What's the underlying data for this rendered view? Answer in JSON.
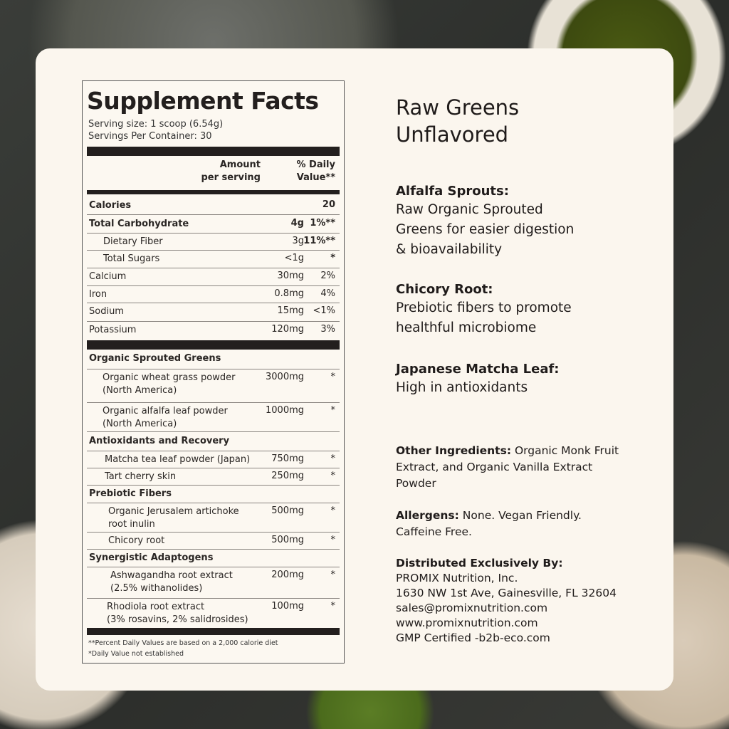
{
  "facts": {
    "title": "Supplement Facts",
    "serving_size": "Serving size: 1 scoop (6.54g)",
    "servings_per_container": "Servings Per Container: 30",
    "col_amount": [
      "Amount",
      "per serving"
    ],
    "col_dv": [
      "% Daily",
      "Value**"
    ],
    "calories": {
      "name": "Calories",
      "value": "20"
    },
    "nutrients": [
      {
        "name": "Total Carbohydrate",
        "amount": "4g",
        "dv": "1%**"
      },
      {
        "name": "Dietary Fiber",
        "amount": "3g",
        "dv": "11%**"
      },
      {
        "name": "Total Sugars",
        "amount": "<1g",
        "dv": "*"
      },
      {
        "name": "Calcium",
        "amount": "30mg",
        "dv": "2%"
      },
      {
        "name": "Iron",
        "amount": "0.8mg",
        "dv": "4%"
      },
      {
        "name": "Sodium",
        "amount": "15mg",
        "dv": "<1%"
      },
      {
        "name": "Potassium",
        "amount": "120mg",
        "dv": "3%"
      }
    ],
    "groups": [
      {
        "name": "Organic Sprouted Greens",
        "items": [
          {
            "name": "Organic wheat grass powder",
            "sub": "(North America)",
            "amount": "3000mg",
            "dv": "*"
          },
          {
            "name": "Organic alfalfa leaf powder",
            "sub": "(North America)",
            "amount": "1000mg",
            "dv": "*"
          }
        ]
      },
      {
        "name": "Antioxidants and Recovery",
        "items": [
          {
            "name": "Matcha tea leaf powder (Japan)",
            "amount": "750mg",
            "dv": "*"
          },
          {
            "name": "Tart cherry skin",
            "amount": "250mg",
            "dv": "*"
          }
        ]
      },
      {
        "name": "Prebiotic Fibers",
        "items": [
          {
            "name": "Organic Jerusalem artichoke",
            "sub": "root inulin",
            "amount": "500mg",
            "dv": "*"
          },
          {
            "name": "Chicory root",
            "amount": "500mg",
            "dv": "*"
          }
        ]
      },
      {
        "name": "Synergistic Adaptogens",
        "items": [
          {
            "name": "Ashwagandha root extract",
            "sub": "(2.5% withanolides)",
            "amount": "200mg",
            "dv": "*"
          },
          {
            "name": "Rhodiola root extract",
            "sub": "(3% rosavins, 2% salidrosides)",
            "amount": "100mg",
            "dv": "*"
          }
        ]
      }
    ],
    "footnotes": [
      "**Percent Daily Values are based on a 2,000 calorie diet",
      "*Daily Value not established"
    ]
  },
  "product": {
    "title_lines": [
      "Raw Greens",
      "Unflavored"
    ]
  },
  "highlights": [
    {
      "heading": "Alfalfa Sprouts:",
      "lines": [
        "Raw Organic Sprouted",
        "Greens for easier digestion",
        "& bioavailability"
      ]
    },
    {
      "heading": "Chicory Root:",
      "lines": [
        "Prebiotic fibers to promote",
        "healthful microbiome"
      ]
    },
    {
      "heading": "Japanese Matcha Leaf:",
      "lines": [
        "High in antioxidants"
      ]
    }
  ],
  "other_ingredients": {
    "label": "Other Ingredients:",
    "lines": [
      " Organic Monk Fruit",
      "Extract, and Organic Vanilla Extract",
      "Powder"
    ]
  },
  "allergens": {
    "label": "Allergens:",
    "lines": [
      " None. Vegan Friendly.",
      "Caffeine Free."
    ]
  },
  "distributor": {
    "label": "Distributed Exclusively By:",
    "lines": [
      "PROMIX Nutrition, Inc.",
      "1630 NW 1st Ave, Gainesville, FL 32604",
      "sales@promixnutrition.com",
      "www.promixnutrition.com",
      "GMP Certified -b2b-eco.com"
    ]
  }
}
